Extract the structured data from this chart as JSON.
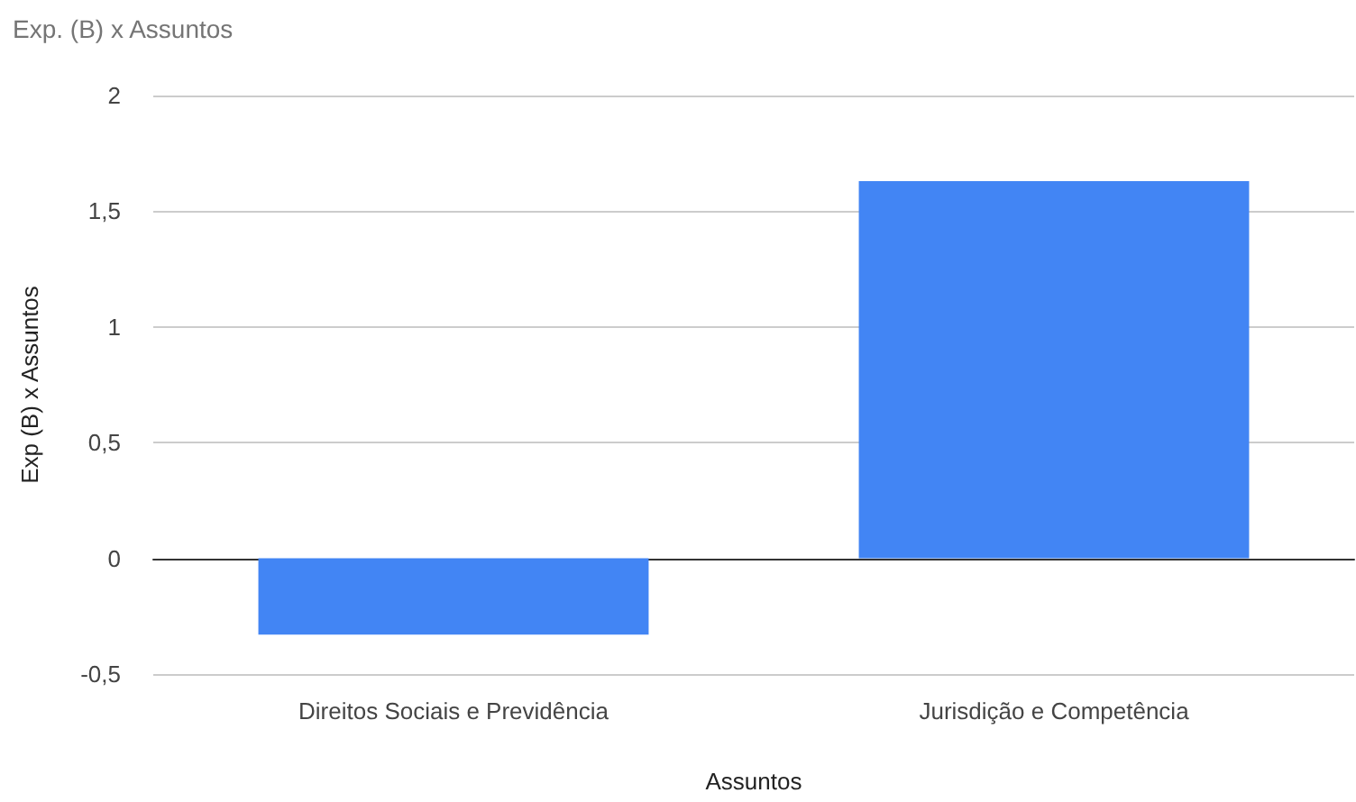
{
  "chart_data": {
    "type": "bar",
    "title": "Exp. (B) x Assuntos",
    "xlabel": "Assuntos",
    "ylabel": "Exp (B) x Assuntos",
    "categories": [
      "Direitos Sociais e Previdência",
      "Jurisdição e Competência"
    ],
    "values": [
      -0.33,
      1.63
    ],
    "color": "#4285f4",
    "ylim": [
      -0.5,
      2
    ],
    "yticks": [
      {
        "value": -0.5,
        "label": "-0,5"
      },
      0,
      {
        "value": 0.5,
        "label": "0,5"
      },
      1,
      {
        "value": 1.5,
        "label": "1,5"
      },
      2
    ],
    "grid": "y"
  }
}
